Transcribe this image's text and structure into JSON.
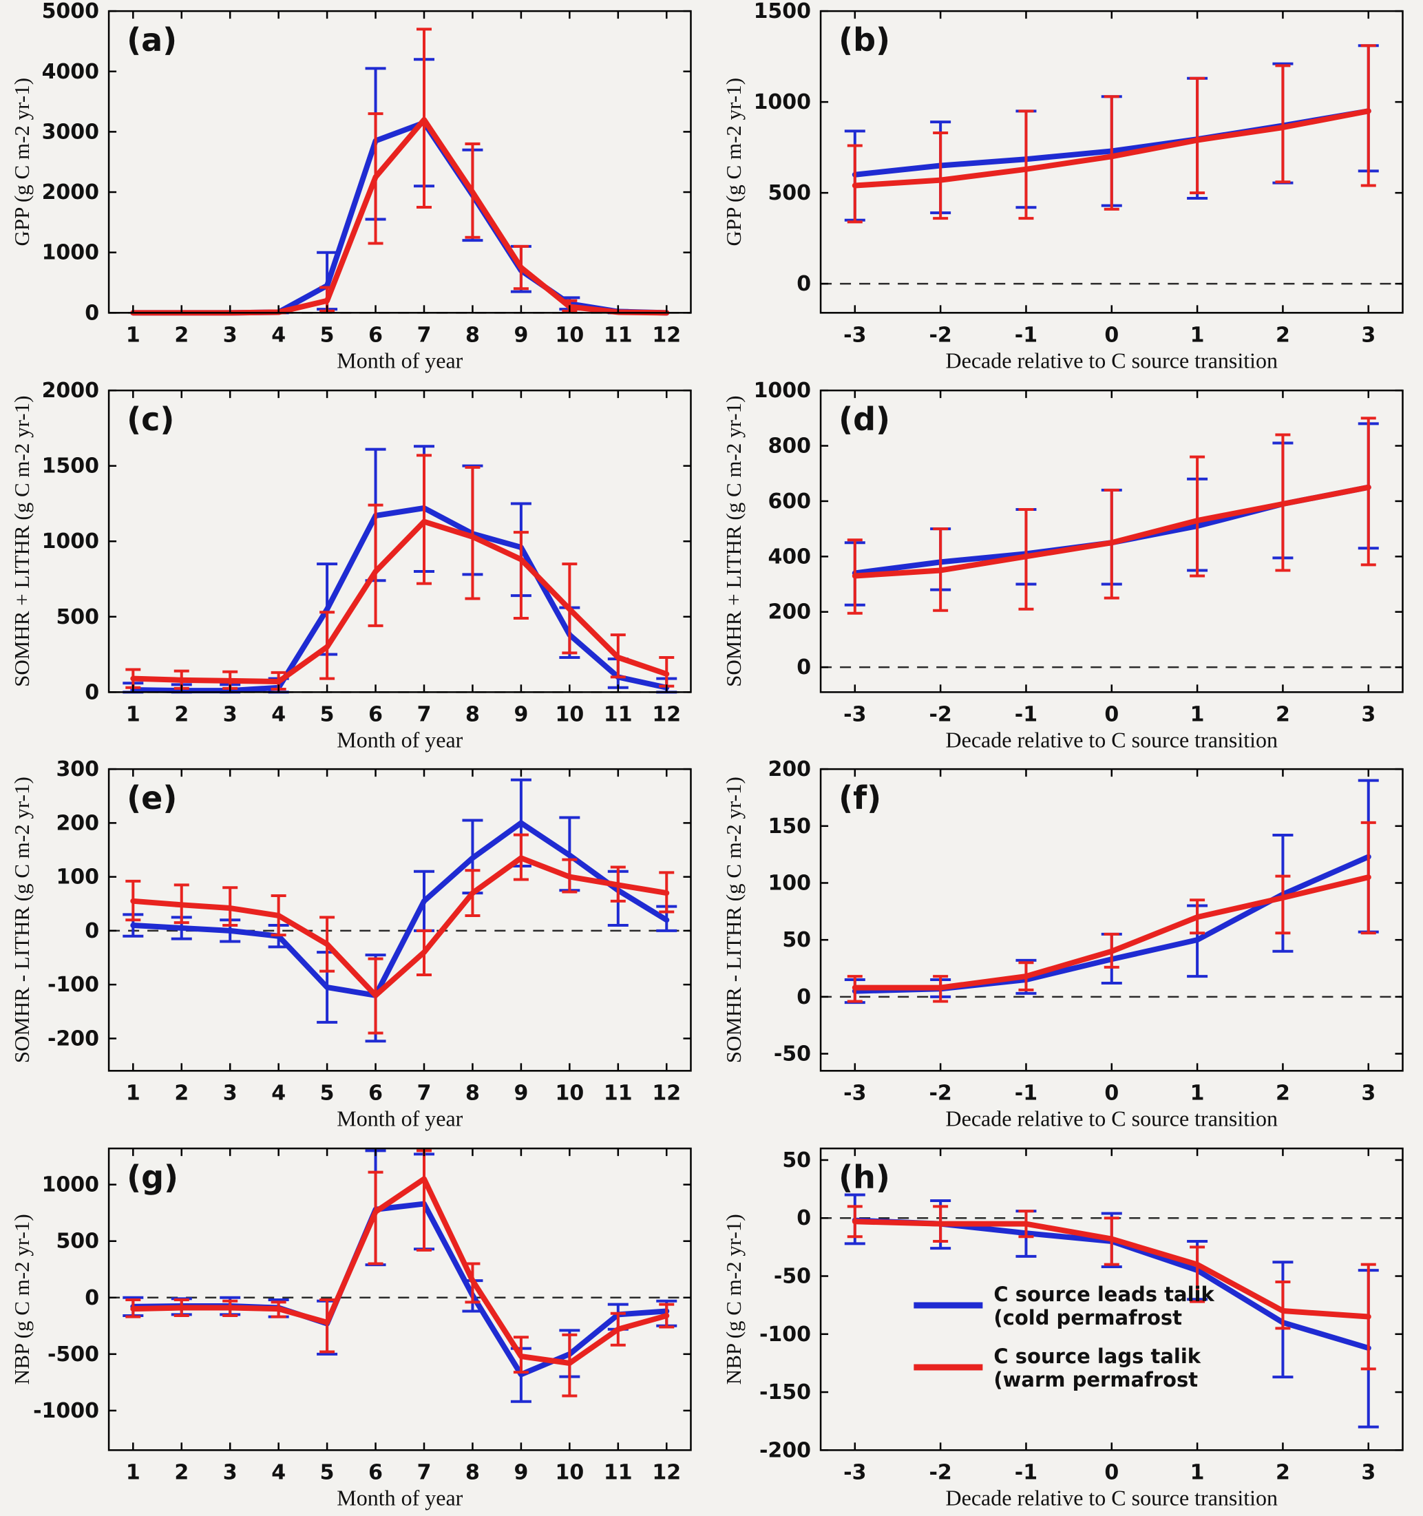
{
  "figure": {
    "background": "#f3f2ef",
    "plot_background": "#f3f2ef"
  },
  "colors": {
    "blue": "#1f2bd2",
    "red": "#e8231f",
    "axis": "#000000",
    "zero_dash": "#2a2a2a",
    "text": "#111111"
  },
  "legend": {
    "entries": [
      {
        "color": "blue",
        "lines": [
          "C source leads talik",
          "(cold permafrost"
        ]
      },
      {
        "color": "red",
        "lines": [
          "C source lags talik",
          "(warm permafrost"
        ]
      }
    ]
  },
  "chart_data": [
    {
      "id": "a",
      "type": "line",
      "label": "(a)",
      "xlabel": "Month of year",
      "ylabel": "GPP  (g C m-2 yr-1)",
      "x": [
        1,
        2,
        3,
        4,
        5,
        6,
        7,
        8,
        9,
        10,
        11,
        12
      ],
      "xticks": [
        1,
        2,
        3,
        4,
        5,
        6,
        7,
        8,
        9,
        10,
        11,
        12
      ],
      "xlim": [
        0.5,
        12.5
      ],
      "ylim": [
        0,
        5000
      ],
      "yticks": [
        0,
        1000,
        2000,
        3000,
        4000,
        5000
      ],
      "zero_line": true,
      "legend": false,
      "series": [
        {
          "name": "C source leads talik (cold permafrost)",
          "color": "blue",
          "values": [
            0,
            0,
            0,
            10,
            450,
            2850,
            3150,
            1950,
            700,
            150,
            20,
            0
          ],
          "err_lo": [
            0,
            0,
            0,
            0,
            60,
            1550,
            2100,
            1200,
            350,
            60,
            0,
            0
          ],
          "err_hi": [
            0,
            0,
            0,
            30,
            1000,
            4050,
            4200,
            2700,
            1100,
            250,
            40,
            0
          ]
        },
        {
          "name": "C source lags talik (warm permafrost)",
          "color": "red",
          "values": [
            0,
            0,
            0,
            10,
            200,
            2250,
            3200,
            2000,
            750,
            100,
            10,
            0
          ],
          "err_lo": [
            0,
            0,
            0,
            0,
            30,
            1150,
            1750,
            1250,
            400,
            30,
            0,
            0
          ],
          "err_hi": [
            0,
            0,
            0,
            30,
            420,
            3300,
            4700,
            2800,
            1100,
            200,
            30,
            0
          ]
        }
      ]
    },
    {
      "id": "b",
      "type": "line",
      "label": "(b)",
      "xlabel": "Decade relative to C source transition",
      "ylabel": "GPP  (g C m-2 yr-1)",
      "x": [
        -3,
        -2,
        -1,
        0,
        1,
        2,
        3
      ],
      "xticks": [
        -3,
        -2,
        -1,
        0,
        1,
        2,
        3
      ],
      "xlim": [
        -3.4,
        3.4
      ],
      "ylim": [
        -160,
        1500
      ],
      "yticks": [
        0,
        500,
        1000,
        1500
      ],
      "zero_line": true,
      "legend": false,
      "series": [
        {
          "name": "C source leads talik (cold permafrost)",
          "color": "blue",
          "values": [
            600,
            650,
            685,
            730,
            795,
            870,
            950
          ],
          "err_lo": [
            350,
            390,
            420,
            430,
            470,
            555,
            620
          ],
          "err_hi": [
            840,
            890,
            950,
            1030,
            1130,
            1210,
            1310
          ]
        },
        {
          "name": "C source lags talik (warm permafrost)",
          "color": "red",
          "values": [
            540,
            570,
            630,
            700,
            790,
            860,
            950
          ],
          "err_lo": [
            340,
            360,
            360,
            410,
            500,
            560,
            540
          ],
          "err_hi": [
            760,
            830,
            950,
            1030,
            1130,
            1200,
            1310
          ]
        }
      ]
    },
    {
      "id": "c",
      "type": "line",
      "label": "(c)",
      "xlabel": "Month of year",
      "ylabel": "SOMHR + LITHR  (g C m-2 yr-1)",
      "x": [
        1,
        2,
        3,
        4,
        5,
        6,
        7,
        8,
        9,
        10,
        11,
        12
      ],
      "xticks": [
        1,
        2,
        3,
        4,
        5,
        6,
        7,
        8,
        9,
        10,
        11,
        12
      ],
      "xlim": [
        0.5,
        12.5
      ],
      "ylim": [
        0,
        2000
      ],
      "yticks": [
        0,
        500,
        1000,
        1500,
        2000
      ],
      "zero_line": true,
      "legend": false,
      "series": [
        {
          "name": "C source leads talik (cold permafrost)",
          "color": "blue",
          "values": [
            15,
            10,
            10,
            30,
            550,
            1170,
            1220,
            1050,
            960,
            380,
            100,
            30
          ],
          "err_lo": [
            0,
            0,
            0,
            0,
            250,
            740,
            800,
            780,
            640,
            230,
            30,
            0
          ],
          "err_hi": [
            60,
            50,
            50,
            90,
            850,
            1610,
            1630,
            1500,
            1250,
            560,
            220,
            90
          ]
        },
        {
          "name": "C source lags talik (warm permafrost)",
          "color": "red",
          "values": [
            90,
            80,
            75,
            70,
            300,
            800,
            1130,
            1030,
            880,
            550,
            230,
            120
          ],
          "err_lo": [
            30,
            25,
            25,
            20,
            90,
            440,
            720,
            620,
            490,
            260,
            100,
            40
          ],
          "err_hi": [
            150,
            140,
            135,
            130,
            530,
            1240,
            1570,
            1490,
            1060,
            850,
            380,
            230
          ]
        }
      ]
    },
    {
      "id": "d",
      "type": "line",
      "label": "(d)",
      "xlabel": "Decade relative to C source transition",
      "ylabel": "SOMHR + LITHR  (g C m-2 yr-1)",
      "x": [
        -3,
        -2,
        -1,
        0,
        1,
        2,
        3
      ],
      "xticks": [
        -3,
        -2,
        -1,
        0,
        1,
        2,
        3
      ],
      "xlim": [
        -3.4,
        3.4
      ],
      "ylim": [
        -90,
        1000
      ],
      "yticks": [
        0,
        200,
        400,
        600,
        800,
        1000
      ],
      "zero_line": true,
      "legend": false,
      "series": [
        {
          "name": "C source leads talik (cold permafrost)",
          "color": "blue",
          "values": [
            340,
            380,
            410,
            450,
            510,
            590,
            650
          ],
          "err_lo": [
            225,
            280,
            300,
            300,
            350,
            395,
            430
          ],
          "err_hi": [
            450,
            500,
            570,
            640,
            680,
            810,
            880
          ]
        },
        {
          "name": "C source lags talik (warm permafrost)",
          "color": "red",
          "values": [
            330,
            350,
            400,
            450,
            530,
            590,
            650
          ],
          "err_lo": [
            195,
            205,
            210,
            250,
            330,
            350,
            370
          ],
          "err_hi": [
            460,
            500,
            570,
            640,
            760,
            840,
            900
          ]
        }
      ]
    },
    {
      "id": "e",
      "type": "line",
      "label": "(e)",
      "xlabel": "Month of year",
      "ylabel": "SOMHR - LITHR  (g C m-2 yr-1)",
      "x": [
        1,
        2,
        3,
        4,
        5,
        6,
        7,
        8,
        9,
        10,
        11,
        12
      ],
      "xticks": [
        1,
        2,
        3,
        4,
        5,
        6,
        7,
        8,
        9,
        10,
        11,
        12
      ],
      "xlim": [
        0.5,
        12.5
      ],
      "ylim": [
        -260,
        300
      ],
      "yticks": [
        -200,
        -100,
        0,
        100,
        200,
        300
      ],
      "zero_line": true,
      "legend": false,
      "series": [
        {
          "name": "C source leads talik (cold permafrost)",
          "color": "blue",
          "values": [
            10,
            5,
            0,
            -10,
            -105,
            -120,
            55,
            135,
            200,
            140,
            75,
            20
          ],
          "err_lo": [
            -10,
            -15,
            -20,
            -30,
            -170,
            -205,
            0,
            70,
            120,
            75,
            10,
            0
          ],
          "err_hi": [
            30,
            25,
            20,
            10,
            -40,
            -45,
            110,
            205,
            280,
            210,
            110,
            45
          ]
        },
        {
          "name": "C source lags talik (warm permafrost)",
          "color": "red",
          "values": [
            55,
            48,
            42,
            28,
            -25,
            -120,
            -40,
            70,
            135,
            100,
            85,
            70
          ],
          "err_lo": [
            20,
            15,
            10,
            -8,
            -75,
            -190,
            -82,
            28,
            95,
            72,
            55,
            35
          ],
          "err_hi": [
            92,
            85,
            80,
            65,
            25,
            -52,
            0,
            112,
            178,
            132,
            118,
            108
          ]
        }
      ]
    },
    {
      "id": "f",
      "type": "line",
      "label": "(f)",
      "xlabel": "Decade relative to C source transition",
      "ylabel": "SOMHR - LITHR  (g C m-2 yr-1)",
      "x": [
        -3,
        -2,
        -1,
        0,
        1,
        2,
        3
      ],
      "xticks": [
        -3,
        -2,
        -1,
        0,
        1,
        2,
        3
      ],
      "xlim": [
        -3.4,
        3.4
      ],
      "ylim": [
        -65,
        200
      ],
      "yticks": [
        -50,
        0,
        50,
        100,
        150,
        200
      ],
      "zero_line": true,
      "legend": false,
      "series": [
        {
          "name": "C source leads talik (cold permafrost)",
          "color": "blue",
          "values": [
            5,
            7,
            15,
            33,
            50,
            90,
            123
          ],
          "err_lo": [
            -5,
            0,
            3,
            12,
            18,
            40,
            57
          ],
          "err_hi": [
            15,
            15,
            32,
            55,
            80,
            142,
            190
          ]
        },
        {
          "name": "C source lags talik (warm permafrost)",
          "color": "red",
          "values": [
            8,
            8,
            18,
            40,
            70,
            87,
            105
          ],
          "err_lo": [
            -4,
            -4,
            6,
            26,
            56,
            56,
            56
          ],
          "err_hi": [
            18,
            18,
            30,
            55,
            85,
            106,
            153
          ]
        }
      ]
    },
    {
      "id": "g",
      "type": "line",
      "label": "(g)",
      "xlabel": "Month of year",
      "ylabel": "NBP  (g C m-2 yr-1)",
      "x": [
        1,
        2,
        3,
        4,
        5,
        6,
        7,
        8,
        9,
        10,
        11,
        12
      ],
      "xticks": [
        1,
        2,
        3,
        4,
        5,
        6,
        7,
        8,
        9,
        10,
        11,
        12
      ],
      "xlim": [
        0.5,
        12.5
      ],
      "ylim": [
        -1350,
        1320
      ],
      "yticks": [
        -1000,
        -500,
        0,
        500,
        1000
      ],
      "zero_line": true,
      "legend": false,
      "series": [
        {
          "name": "C source leads talik (cold permafrost)",
          "color": "blue",
          "values": [
            -80,
            -75,
            -75,
            -90,
            -230,
            780,
            830,
            20,
            -680,
            -500,
            -150,
            -120
          ],
          "err_lo": [
            -160,
            -150,
            -150,
            -170,
            -500,
            290,
            430,
            -120,
            -920,
            -700,
            -280,
            -250
          ],
          "err_hi": [
            0,
            -10,
            0,
            -20,
            -30,
            1300,
            1270,
            150,
            -450,
            -290,
            -60,
            -30
          ]
        },
        {
          "name": "C source lags talik (warm permafrost)",
          "color": "red",
          "values": [
            -100,
            -90,
            -90,
            -100,
            -220,
            760,
            1050,
            150,
            -520,
            -580,
            -280,
            -160
          ],
          "err_lo": [
            -170,
            -160,
            -160,
            -170,
            -480,
            300,
            420,
            -40,
            -660,
            -870,
            -420,
            -260
          ],
          "err_hi": [
            -20,
            -20,
            -30,
            -40,
            -20,
            1110,
            1300,
            300,
            -350,
            -330,
            -140,
            -60
          ]
        }
      ]
    },
    {
      "id": "h",
      "type": "line",
      "label": "(h)",
      "xlabel": "Decade relative to C source transition",
      "ylabel": "NBP  (g C m-2 yr-1)",
      "x": [
        -3,
        -2,
        -1,
        0,
        1,
        2,
        3
      ],
      "xticks": [
        -3,
        -2,
        -1,
        0,
        1,
        2,
        3
      ],
      "xlim": [
        -3.4,
        3.4
      ],
      "ylim": [
        -200,
        60
      ],
      "yticks": [
        -200,
        -150,
        -100,
        -50,
        0,
        50
      ],
      "zero_line": true,
      "legend": true,
      "series": [
        {
          "name": "C source leads talik (cold permafrost)",
          "color": "blue",
          "values": [
            -2,
            -5,
            -13,
            -20,
            -45,
            -90,
            -112
          ],
          "err_lo": [
            -22,
            -26,
            -33,
            -42,
            -70,
            -137,
            -180
          ],
          "err_hi": [
            20,
            15,
            6,
            4,
            -20,
            -38,
            -45
          ]
        },
        {
          "name": "C source lags talik (warm permafrost)",
          "color": "red",
          "values": [
            -3,
            -5,
            -5,
            -18,
            -40,
            -80,
            -85
          ],
          "err_lo": [
            -16,
            -20,
            -16,
            -40,
            -72,
            -95,
            -130
          ],
          "err_hi": [
            10,
            10,
            6,
            0,
            -25,
            -55,
            -40
          ]
        }
      ]
    }
  ]
}
